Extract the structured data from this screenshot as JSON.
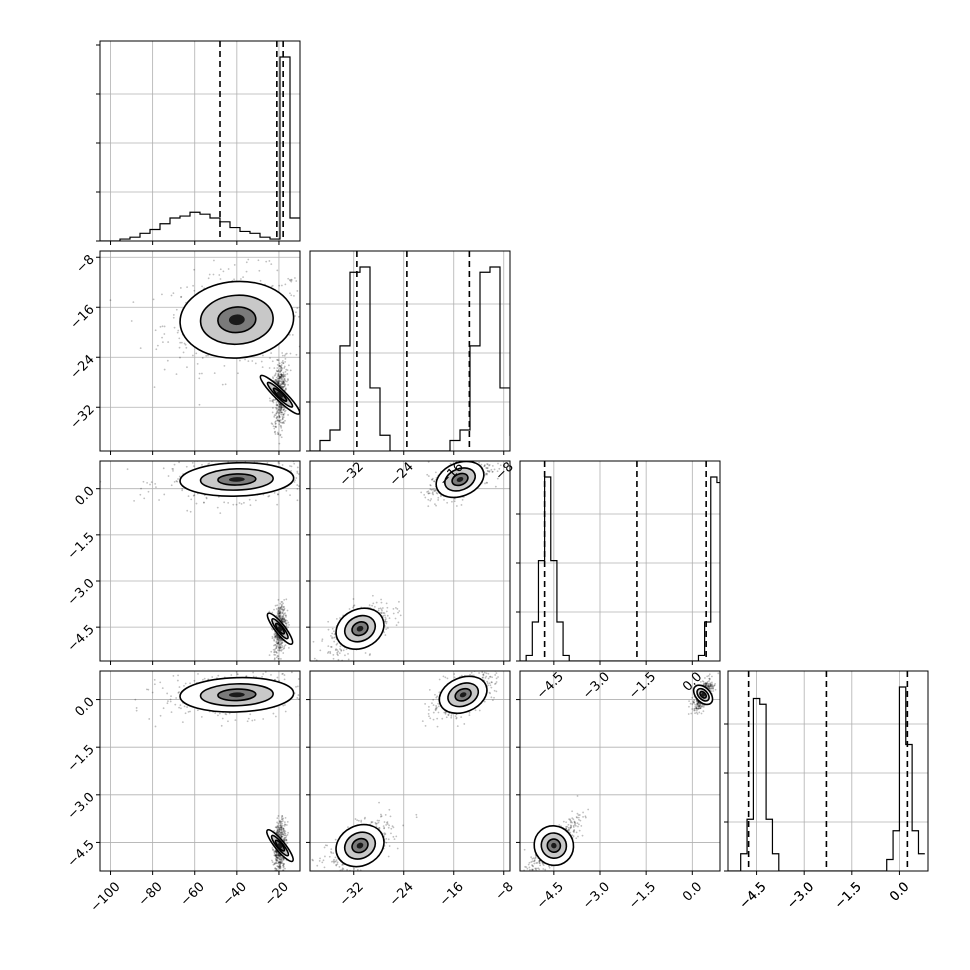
{
  "chart_data": {
    "type": "corner",
    "grid": true,
    "parameters": [
      {
        "range": [
          -105,
          -10
        ],
        "ticks": [
          "−100",
          "−80",
          "−60",
          "−40",
          "−20"
        ],
        "tick_values": [
          -100,
          -80,
          -60,
          -40,
          -20
        ]
      },
      {
        "range": [
          -39,
          -7
        ],
        "ticks": [
          "−32",
          "−24",
          "−16",
          "−8"
        ],
        "tick_values": [
          -32,
          -24,
          -16,
          -8
        ]
      },
      {
        "range": [
          -5.6,
          0.9
        ],
        "ticks": [
          "−4.5",
          "−3.0",
          "−1.5",
          "0.0"
        ],
        "tick_values": [
          -4.5,
          -3.0,
          -1.5,
          0.0
        ]
      },
      {
        "range": [
          -5.4,
          0.9
        ],
        "ticks": [
          "−4.5",
          "−3.0",
          "−1.5",
          "0.0"
        ],
        "tick_values": [
          -4.5,
          -3.0,
          -1.5,
          0.0
        ]
      }
    ],
    "histograms": [
      {
        "bin_start": -105,
        "bin_width": 4.75,
        "counts": [
          0,
          0,
          1,
          2,
          4,
          6,
          9,
          12,
          13,
          15,
          14,
          12,
          10,
          7,
          5,
          4,
          2,
          1,
          96,
          12
        ],
        "quantiles": [
          -48,
          -21,
          -18
        ]
      },
      {
        "bin_start": -39,
        "bin_width": 1.6,
        "counts": [
          0,
          2,
          4,
          20,
          34,
          35,
          12,
          3,
          0,
          0,
          0,
          0,
          0,
          0,
          2,
          4,
          20,
          34,
          35,
          12,
          3,
          0
        ],
        "quantiles": [
          -31.5,
          -23.5,
          -13.5
        ]
      },
      {
        "bin_start": -5.6,
        "bin_width": 0.2,
        "counts": [
          0,
          1,
          7,
          18,
          33,
          18,
          7,
          1,
          0,
          0,
          0,
          0,
          0,
          0,
          0,
          0,
          0,
          0,
          0,
          0,
          0,
          0,
          0,
          0,
          0,
          0,
          0,
          0,
          0,
          1,
          7,
          33,
          32,
          7
        ],
        "quantiles": [
          -4.8,
          -1.8,
          0.45
        ]
      },
      {
        "bin_start": -5.4,
        "bin_width": 0.2,
        "counts": [
          0,
          0,
          3,
          9,
          30,
          29,
          9,
          3,
          0,
          0,
          0,
          0,
          0,
          0,
          0,
          0,
          0,
          0,
          0,
          0,
          0,
          0,
          0,
          0,
          0,
          2,
          7,
          32,
          22,
          7,
          3
        ],
        "quantiles": [
          -4.75,
          -2.3,
          0.25
        ]
      }
    ],
    "blobs": [
      {
        "row": 1,
        "col": 0,
        "cx": -40,
        "cy": -18,
        "sx": 15,
        "sy": 3.4,
        "rho": 0.1
      },
      {
        "row": 1,
        "col": 0,
        "cx": -19.5,
        "cy": -30,
        "sx": 1.4,
        "sy": 2.4,
        "rho": 0.2
      },
      {
        "row": 2,
        "col": 0,
        "cx": -40,
        "cy": 0.3,
        "sx": 15,
        "sy": 0.3,
        "rho": 0.1
      },
      {
        "row": 2,
        "col": 0,
        "cx": -19.5,
        "cy": -4.55,
        "sx": 1.3,
        "sy": 0.35,
        "rho": 0.2
      },
      {
        "row": 2,
        "col": 1,
        "cx": -15,
        "cy": 0.3,
        "sx": 2.2,
        "sy": 0.3,
        "rho": 0.6
      },
      {
        "row": 2,
        "col": 1,
        "cx": -31,
        "cy": -4.55,
        "sx": 2.2,
        "sy": 0.35,
        "rho": 0.6
      },
      {
        "row": 3,
        "col": 0,
        "cx": -40,
        "cy": 0.15,
        "sx": 15,
        "sy": 0.3,
        "rho": 0.1
      },
      {
        "row": 3,
        "col": 0,
        "cx": -19.5,
        "cy": -4.6,
        "sx": 1.3,
        "sy": 0.35,
        "rho": 0.2
      },
      {
        "row": 3,
        "col": 1,
        "cx": -14.5,
        "cy": 0.15,
        "sx": 2.2,
        "sy": 0.3,
        "rho": 0.6
      },
      {
        "row": 3,
        "col": 1,
        "cx": -31,
        "cy": -4.6,
        "sx": 2.2,
        "sy": 0.35,
        "rho": 0.6
      },
      {
        "row": 3,
        "col": 2,
        "cx": 0.35,
        "cy": 0.15,
        "sx": 0.13,
        "sy": 0.2,
        "rho": 0.6
      },
      {
        "row": 3,
        "col": 2,
        "cx": -4.5,
        "cy": -4.6,
        "sx": 0.35,
        "sy": 0.35,
        "rho": 0.85
      }
    ]
  }
}
